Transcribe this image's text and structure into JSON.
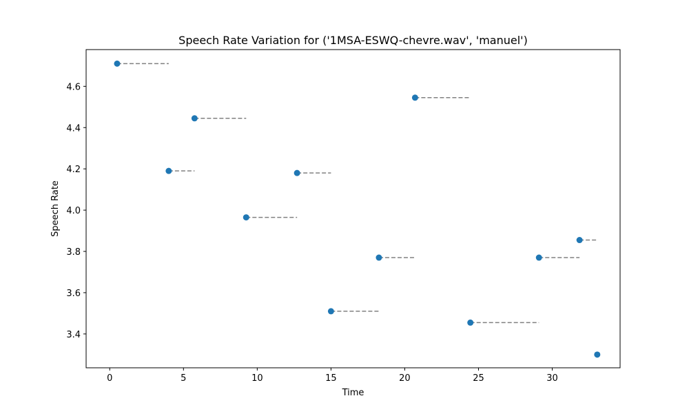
{
  "chart_data": {
    "type": "scatter",
    "title": "Speech Rate Variation for ('1MSA-ESWQ-chevre.wav', 'manuel')",
    "xlabel": "Time",
    "ylabel": "Speech Rate",
    "xlim": [
      -1.6,
      34.6
    ],
    "ylim": [
      3.236,
      4.778
    ],
    "xticks": [
      0,
      5,
      10,
      15,
      20,
      25,
      30
    ],
    "yticks": [
      3.4,
      3.6,
      3.8,
      4.0,
      4.2,
      4.4,
      4.6
    ],
    "grid": false,
    "series": [
      {
        "marker_color": "#1f77b4",
        "segment_color": "#808080",
        "points": [
          {
            "x": 0.5,
            "y": 4.71,
            "x_end": 4.0
          },
          {
            "x": 4.0,
            "y": 4.19,
            "x_end": 5.75
          },
          {
            "x": 5.75,
            "y": 4.445,
            "x_end": 9.25
          },
          {
            "x": 9.25,
            "y": 3.965,
            "x_end": 12.7
          },
          {
            "x": 12.7,
            "y": 4.18,
            "x_end": 15.0
          },
          {
            "x": 15.0,
            "y": 3.51,
            "x_end": 18.25
          },
          {
            "x": 18.25,
            "y": 3.77,
            "x_end": 20.7
          },
          {
            "x": 20.7,
            "y": 4.545,
            "x_end": 24.45
          },
          {
            "x": 24.45,
            "y": 3.455,
            "x_end": 29.1
          },
          {
            "x": 29.1,
            "y": 3.77,
            "x_end": 31.85
          },
          {
            "x": 31.85,
            "y": 3.855,
            "x_end": 33.05
          },
          {
            "x": 33.05,
            "y": 3.3,
            "x_end": null
          }
        ]
      }
    ]
  }
}
